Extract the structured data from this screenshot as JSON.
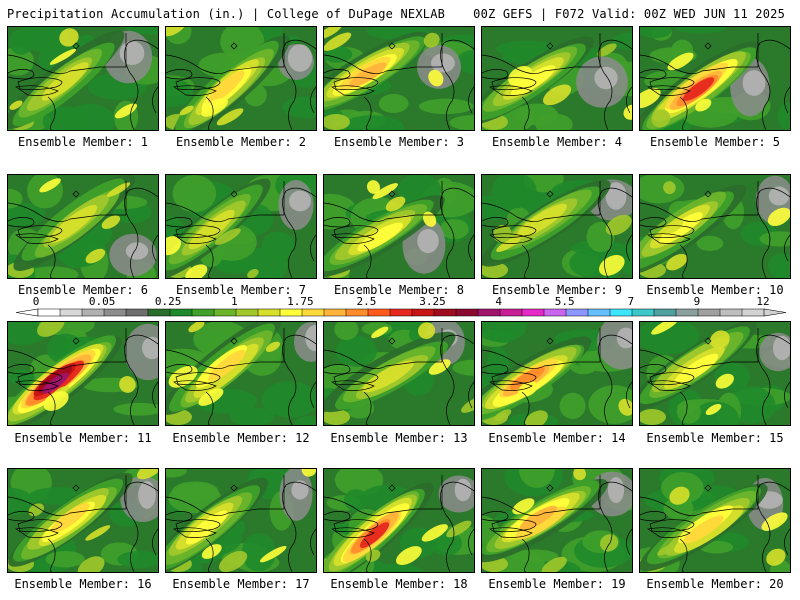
{
  "header": {
    "left": "Precipitation Accumulation (in.) | College of DuPage NEXLAB",
    "right": "00Z GEFS | F072 Valid: 00Z WED JUN 11 2025"
  },
  "colorbar": {
    "labels": [
      "0",
      "0.05",
      "0.25",
      "1",
      "1.75",
      "2.5",
      "3.25",
      "4",
      "5.5",
      "7",
      "9",
      "12"
    ],
    "colors": [
      "#ffffff",
      "#d7d7d7",
      "#b0b0b0",
      "#8c8c8c",
      "#6e6e6e",
      "#2b6e2b",
      "#1f8a2a",
      "#3fa02a",
      "#6cb52a",
      "#a0c82a",
      "#d6e02a",
      "#ffff3a",
      "#ffd83a",
      "#ffb43a",
      "#ff8c2a",
      "#ff5a1e",
      "#e6281e",
      "#c81414",
      "#a00a1e",
      "#8c0a32",
      "#a0146e",
      "#c81e96",
      "#e628c8",
      "#c864f0",
      "#8c96ff",
      "#64beff",
      "#3ce6ff",
      "#3cc8c8",
      "#50a0a0",
      "#8ca0a0",
      "#a0a0a0",
      "#bebebe",
      "#d2d2d2"
    ]
  },
  "panel_prefix": "Ensemble Member: ",
  "panels": [
    {
      "member": "1",
      "label": "Ensemble Member: 1"
    },
    {
      "member": "2",
      "label": "Ensemble Member: 2"
    },
    {
      "member": "3",
      "label": "Ensemble Member: 3"
    },
    {
      "member": "4",
      "label": "Ensemble Member: 4"
    },
    {
      "member": "5",
      "label": "Ensemble Member: 5"
    },
    {
      "member": "6",
      "label": "Ensemble Member: 6"
    },
    {
      "member": "7",
      "label": "Ensemble Member: 7"
    },
    {
      "member": "8",
      "label": "Ensemble Member: 8"
    },
    {
      "member": "9",
      "label": "Ensemble Member: 9"
    },
    {
      "member": "10",
      "label": "Ensemble Member: 10"
    },
    {
      "member": "11",
      "label": "Ensemble Member: 11"
    },
    {
      "member": "12",
      "label": "Ensemble Member: 12"
    },
    {
      "member": "13",
      "label": "Ensemble Member: 13"
    },
    {
      "member": "14",
      "label": "Ensemble Member: 14"
    },
    {
      "member": "15",
      "label": "Ensemble Member: 15"
    },
    {
      "member": "16",
      "label": "Ensemble Member: 16"
    },
    {
      "member": "17",
      "label": "Ensemble Member: 17"
    },
    {
      "member": "18",
      "label": "Ensemble Member: 18"
    },
    {
      "member": "19",
      "label": "Ensemble Member: 19"
    },
    {
      "member": "20",
      "label": "Ensemble Member: 20"
    }
  ]
}
